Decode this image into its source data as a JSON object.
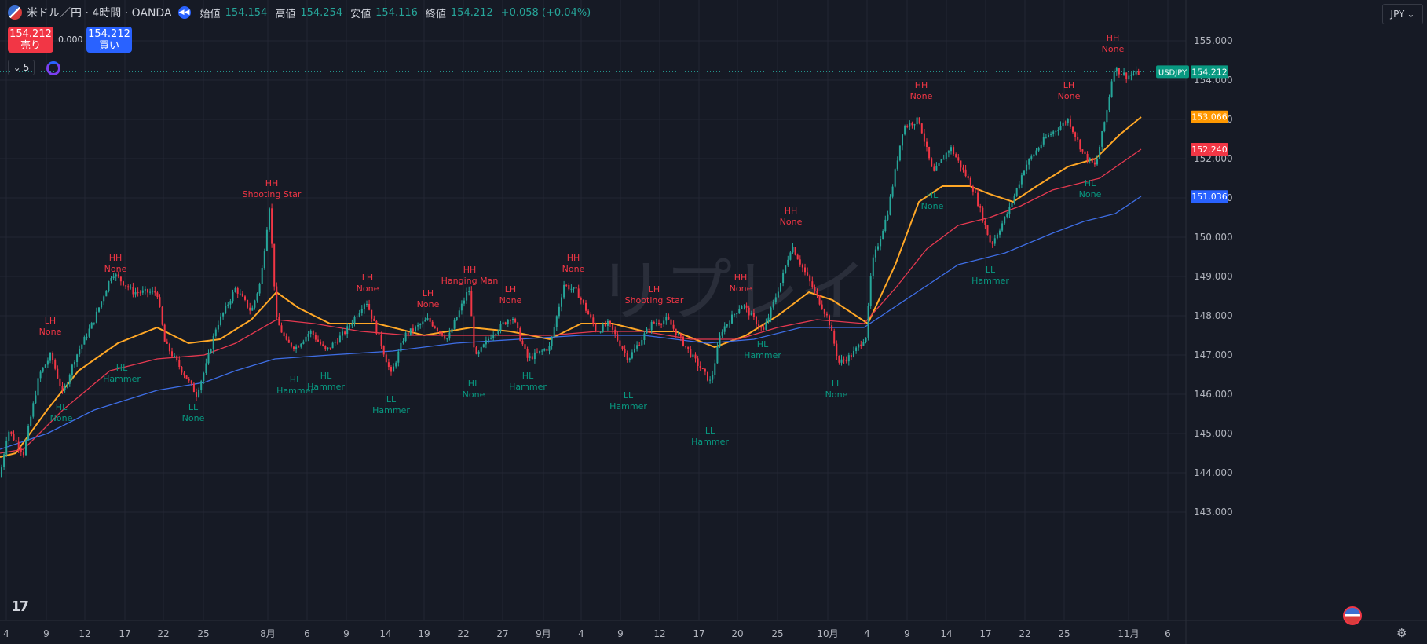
{
  "header": {
    "symbol_title": "米ドル／円 · 4時間 · OANDA",
    "open_label": "始値",
    "open": "154.154",
    "high_label": "高値",
    "high": "154.254",
    "low_label": "安値",
    "low": "154.116",
    "close_label": "終値",
    "close": "154.212",
    "change": "+0.058 (+0.04%)"
  },
  "trade": {
    "sell_price": "154.212",
    "sell_label": "売り",
    "spread": "0.000",
    "buy_price": "154.212",
    "buy_label": "買い"
  },
  "indicator_count": "5",
  "currency": "JPY",
  "watermark": "リプレイ",
  "colors": {
    "background": "#161a25",
    "grid": "#232633",
    "up": "#26a69a",
    "down": "#f23645",
    "ma_orange": "#ffa726",
    "ma_red": "#e53950",
    "ma_blue": "#3e6ee6",
    "label_high": "#f23645",
    "label_low": "#089981"
  },
  "chart_data": {
    "type": "candlestick",
    "symbol": "USDJPY",
    "timeframe": "4時間",
    "y_ticks": [
      "143.000",
      "144.000",
      "145.000",
      "146.000",
      "147.000",
      "148.000",
      "149.000",
      "150.000",
      "151.000",
      "152.000",
      "153.000",
      "154.000",
      "155.000"
    ],
    "ylim": [
      142.6,
      155.7
    ],
    "x_ticks": [
      "4",
      "9",
      "12",
      "17",
      "22",
      "25",
      "8月",
      "6",
      "9",
      "14",
      "19",
      "22",
      "27",
      "9月",
      "4",
      "9",
      "12",
      "17",
      "20",
      "25",
      "10月",
      "4",
      "9",
      "14",
      "17",
      "22",
      "25",
      "11月",
      "6"
    ],
    "price_anchors": [
      {
        "x": 0,
        "y": 143.9
      },
      {
        "x": 10,
        "y": 145.1
      },
      {
        "x": 30,
        "y": 144.5
      },
      {
        "x": 50,
        "y": 146.5
      },
      {
        "x": 65,
        "y": 147.0
      },
      {
        "x": 80,
        "y": 146.0
      },
      {
        "x": 95,
        "y": 146.9
      },
      {
        "x": 120,
        "y": 147.9
      },
      {
        "x": 143,
        "y": 149.1
      },
      {
        "x": 170,
        "y": 148.6
      },
      {
        "x": 200,
        "y": 148.6
      },
      {
        "x": 210,
        "y": 147.3
      },
      {
        "x": 235,
        "y": 146.5
      },
      {
        "x": 250,
        "y": 146.0
      },
      {
        "x": 262,
        "y": 146.7
      },
      {
        "x": 275,
        "y": 147.7
      },
      {
        "x": 300,
        "y": 148.7
      },
      {
        "x": 320,
        "y": 148.1
      },
      {
        "x": 332,
        "y": 148.9
      },
      {
        "x": 343,
        "y": 150.8
      },
      {
        "x": 352,
        "y": 147.9
      },
      {
        "x": 365,
        "y": 147.3
      },
      {
        "x": 377,
        "y": 147.2
      },
      {
        "x": 395,
        "y": 147.6
      },
      {
        "x": 415,
        "y": 147.1
      },
      {
        "x": 440,
        "y": 147.6
      },
      {
        "x": 466,
        "y": 148.4
      },
      {
        "x": 485,
        "y": 147.3
      },
      {
        "x": 498,
        "y": 146.5
      },
      {
        "x": 515,
        "y": 147.5
      },
      {
        "x": 545,
        "y": 147.9
      },
      {
        "x": 570,
        "y": 147.4
      },
      {
        "x": 597,
        "y": 148.7
      },
      {
        "x": 605,
        "y": 146.9
      },
      {
        "x": 625,
        "y": 147.5
      },
      {
        "x": 652,
        "y": 148.0
      },
      {
        "x": 672,
        "y": 146.9
      },
      {
        "x": 700,
        "y": 147.2
      },
      {
        "x": 718,
        "y": 148.8
      },
      {
        "x": 735,
        "y": 148.6
      },
      {
        "x": 760,
        "y": 147.6
      },
      {
        "x": 775,
        "y": 147.8
      },
      {
        "x": 800,
        "y": 146.9
      },
      {
        "x": 830,
        "y": 147.8
      },
      {
        "x": 850,
        "y": 147.9
      },
      {
        "x": 880,
        "y": 147.0
      },
      {
        "x": 905,
        "y": 146.3
      },
      {
        "x": 918,
        "y": 147.6
      },
      {
        "x": 945,
        "y": 148.3
      },
      {
        "x": 972,
        "y": 147.6
      },
      {
        "x": 995,
        "y": 148.9
      },
      {
        "x": 1008,
        "y": 149.8
      },
      {
        "x": 1025,
        "y": 149.1
      },
      {
        "x": 1040,
        "y": 148.5
      },
      {
        "x": 1055,
        "y": 147.9
      },
      {
        "x": 1068,
        "y": 146.8
      },
      {
        "x": 1085,
        "y": 147.0
      },
      {
        "x": 1103,
        "y": 147.5
      },
      {
        "x": 1110,
        "y": 149.3
      },
      {
        "x": 1130,
        "y": 150.6
      },
      {
        "x": 1150,
        "y": 152.8
      },
      {
        "x": 1170,
        "y": 153.0
      },
      {
        "x": 1188,
        "y": 151.6
      },
      {
        "x": 1210,
        "y": 152.3
      },
      {
        "x": 1240,
        "y": 151.2
      },
      {
        "x": 1262,
        "y": 149.8
      },
      {
        "x": 1285,
        "y": 150.7
      },
      {
        "x": 1305,
        "y": 151.8
      },
      {
        "x": 1330,
        "y": 152.5
      },
      {
        "x": 1360,
        "y": 153.0
      },
      {
        "x": 1380,
        "y": 152.1
      },
      {
        "x": 1395,
        "y": 151.8
      },
      {
        "x": 1410,
        "y": 153.3
      },
      {
        "x": 1418,
        "y": 154.3
      },
      {
        "x": 1435,
        "y": 154.1
      },
      {
        "x": 1453,
        "y": 154.2
      }
    ],
    "moving_averages": [
      {
        "color": "#ffa726",
        "current": "153.066",
        "points": [
          [
            0,
            144.4
          ],
          [
            20,
            144.5
          ],
          [
            60,
            145.6
          ],
          [
            100,
            146.6
          ],
          [
            150,
            147.3
          ],
          [
            200,
            147.7
          ],
          [
            240,
            147.3
          ],
          [
            280,
            147.4
          ],
          [
            320,
            147.9
          ],
          [
            352,
            148.6
          ],
          [
            380,
            148.2
          ],
          [
            420,
            147.8
          ],
          [
            480,
            147.8
          ],
          [
            540,
            147.5
          ],
          [
            600,
            147.7
          ],
          [
            650,
            147.6
          ],
          [
            700,
            147.4
          ],
          [
            740,
            147.8
          ],
          [
            780,
            147.8
          ],
          [
            820,
            147.6
          ],
          [
            860,
            147.6
          ],
          [
            910,
            147.2
          ],
          [
            950,
            147.5
          ],
          [
            990,
            148.0
          ],
          [
            1030,
            148.6
          ],
          [
            1060,
            148.4
          ],
          [
            1105,
            147.8
          ],
          [
            1140,
            149.3
          ],
          [
            1170,
            150.9
          ],
          [
            1200,
            151.3
          ],
          [
            1235,
            151.3
          ],
          [
            1260,
            151.1
          ],
          [
            1290,
            150.9
          ],
          [
            1320,
            151.3
          ],
          [
            1360,
            151.8
          ],
          [
            1395,
            152.0
          ],
          [
            1425,
            152.6
          ],
          [
            1453,
            153.06
          ]
        ]
      },
      {
        "color": "#e53950",
        "current": "152.240",
        "points": [
          [
            0,
            144.5
          ],
          [
            30,
            144.6
          ],
          [
            80,
            145.6
          ],
          [
            140,
            146.6
          ],
          [
            200,
            146.9
          ],
          [
            260,
            147.0
          ],
          [
            300,
            147.3
          ],
          [
            352,
            147.9
          ],
          [
            400,
            147.8
          ],
          [
            460,
            147.6
          ],
          [
            520,
            147.5
          ],
          [
            580,
            147.5
          ],
          [
            640,
            147.5
          ],
          [
            700,
            147.5
          ],
          [
            760,
            147.6
          ],
          [
            820,
            147.6
          ],
          [
            880,
            147.4
          ],
          [
            940,
            147.4
          ],
          [
            990,
            147.7
          ],
          [
            1040,
            147.9
          ],
          [
            1100,
            147.8
          ],
          [
            1140,
            148.7
          ],
          [
            1180,
            149.7
          ],
          [
            1220,
            150.3
          ],
          [
            1260,
            150.5
          ],
          [
            1300,
            150.8
          ],
          [
            1340,
            151.2
          ],
          [
            1400,
            151.5
          ],
          [
            1453,
            152.24
          ]
        ]
      },
      {
        "color": "#3e6ee6",
        "current": "151.036",
        "points": [
          [
            0,
            144.6
          ],
          [
            60,
            145.0
          ],
          [
            120,
            145.6
          ],
          [
            200,
            146.1
          ],
          [
            260,
            146.3
          ],
          [
            300,
            146.6
          ],
          [
            350,
            146.9
          ],
          [
            420,
            147.0
          ],
          [
            500,
            147.1
          ],
          [
            580,
            147.3
          ],
          [
            660,
            147.4
          ],
          [
            740,
            147.5
          ],
          [
            820,
            147.5
          ],
          [
            900,
            147.3
          ],
          [
            960,
            147.4
          ],
          [
            1020,
            147.7
          ],
          [
            1100,
            147.7
          ],
          [
            1160,
            148.5
          ],
          [
            1220,
            149.3
          ],
          [
            1280,
            149.6
          ],
          [
            1340,
            150.1
          ],
          [
            1380,
            150.4
          ],
          [
            1420,
            150.6
          ],
          [
            1453,
            151.04
          ]
        ]
      }
    ],
    "annotations": [
      {
        "x": 64,
        "y": 147.8,
        "kind": "high",
        "lines": [
          "LH",
          "None"
        ]
      },
      {
        "x": 147,
        "y": 149.4,
        "kind": "high",
        "lines": [
          "HH",
          "None"
        ]
      },
      {
        "x": 346,
        "y": 151.3,
        "kind": "high",
        "lines": [
          "HH",
          "Shooting Star"
        ]
      },
      {
        "x": 468,
        "y": 148.9,
        "kind": "high",
        "lines": [
          "LH",
          "None"
        ]
      },
      {
        "x": 545,
        "y": 148.5,
        "kind": "high",
        "lines": [
          "LH",
          "None"
        ]
      },
      {
        "x": 598,
        "y": 149.1,
        "kind": "high",
        "lines": [
          "HH",
          "Hanging Man"
        ]
      },
      {
        "x": 650,
        "y": 148.6,
        "kind": "high",
        "lines": [
          "LH",
          "None"
        ]
      },
      {
        "x": 730,
        "y": 149.4,
        "kind": "high",
        "lines": [
          "HH",
          "None"
        ]
      },
      {
        "x": 833,
        "y": 148.6,
        "kind": "high",
        "lines": [
          "LH",
          "Shooting Star"
        ]
      },
      {
        "x": 943,
        "y": 148.9,
        "kind": "high",
        "lines": [
          "HH",
          "None"
        ]
      },
      {
        "x": 1007,
        "y": 150.6,
        "kind": "high",
        "lines": [
          "HH",
          "None"
        ]
      },
      {
        "x": 1173,
        "y": 153.8,
        "kind": "high",
        "lines": [
          "HH",
          "None"
        ]
      },
      {
        "x": 1361,
        "y": 153.8,
        "kind": "high",
        "lines": [
          "LH",
          "None"
        ]
      },
      {
        "x": 1417,
        "y": 155.0,
        "kind": "high",
        "lines": [
          "HH",
          "None"
        ]
      },
      {
        "x": 78,
        "y": 145.6,
        "kind": "low",
        "lines": [
          "HL",
          "None"
        ]
      },
      {
        "x": 155,
        "y": 146.6,
        "kind": "low",
        "lines": [
          "HL",
          "Hammer"
        ]
      },
      {
        "x": 246,
        "y": 145.6,
        "kind": "low",
        "lines": [
          "LL",
          "None"
        ]
      },
      {
        "x": 376,
        "y": 146.3,
        "kind": "low",
        "lines": [
          "HL",
          "Hammer"
        ]
      },
      {
        "x": 415,
        "y": 146.4,
        "kind": "low",
        "lines": [
          "HL",
          "Hammer"
        ]
      },
      {
        "x": 498,
        "y": 145.8,
        "kind": "low",
        "lines": [
          "LL",
          "Hammer"
        ]
      },
      {
        "x": 603,
        "y": 146.2,
        "kind": "low",
        "lines": [
          "HL",
          "None"
        ]
      },
      {
        "x": 672,
        "y": 146.4,
        "kind": "low",
        "lines": [
          "HL",
          "Hammer"
        ]
      },
      {
        "x": 800,
        "y": 145.9,
        "kind": "low",
        "lines": [
          "LL",
          "Hammer"
        ]
      },
      {
        "x": 904,
        "y": 145.0,
        "kind": "low",
        "lines": [
          "LL",
          "Hammer"
        ]
      },
      {
        "x": 971,
        "y": 147.2,
        "kind": "low",
        "lines": [
          "HL",
          "Hammer"
        ]
      },
      {
        "x": 1065,
        "y": 146.2,
        "kind": "low",
        "lines": [
          "LL",
          "None"
        ]
      },
      {
        "x": 1187,
        "y": 151.0,
        "kind": "low",
        "lines": [
          "HL",
          "None"
        ]
      },
      {
        "x": 1261,
        "y": 149.1,
        "kind": "low",
        "lines": [
          "LL",
          "Hammer"
        ]
      },
      {
        "x": 1388,
        "y": 151.3,
        "kind": "low",
        "lines": [
          "HL",
          "None"
        ]
      }
    ],
    "price_labels": [
      {
        "text": "154.212",
        "value": 154.212,
        "color": "#089981",
        "symbol": "USDJPY"
      },
      {
        "text": "153.066",
        "value": 153.066,
        "color": "#ff9800"
      },
      {
        "text": "152.240",
        "value": 152.24,
        "color": "#f23645"
      },
      {
        "text": "151.036",
        "value": 151.036,
        "color": "#2962ff"
      }
    ],
    "grid": true,
    "current_price": 154.212
  }
}
